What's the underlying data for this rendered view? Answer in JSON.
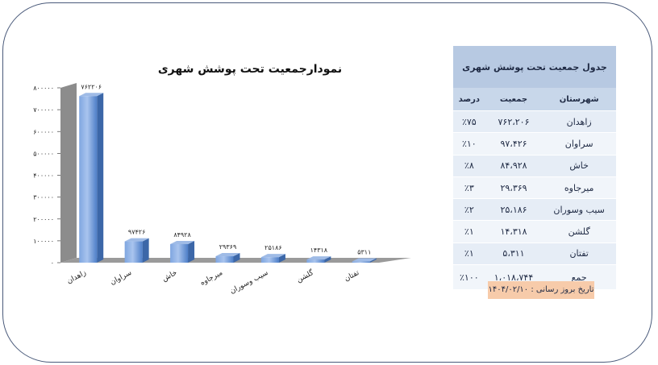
{
  "chart_data": {
    "type": "bar",
    "title": "نمودارجمعیت تحت پوشش شهری",
    "categories": [
      "زاهدان",
      "سراوان",
      "خاش",
      "میرجاوه",
      "سیب وسوران",
      "گلشن",
      "تفتان"
    ],
    "values": [
      762206,
      97426,
      84928,
      29369,
      25186,
      14318,
      5311
    ],
    "data_labels": [
      "۷۶۲۲۰۶",
      "۹۷۴۲۶",
      "۸۴۹۲۸",
      "۲۹۳۶۹",
      "۲۵۱۸۶",
      "۱۴۳۱۸",
      "۵۳۱۱"
    ],
    "ylim": [
      0,
      800000
    ],
    "yticks": [
      0,
      100000,
      200000,
      300000,
      400000,
      500000,
      600000,
      700000,
      800000
    ],
    "ytick_labels": [
      "۰",
      "۱۰۰۰۰۰",
      "۲۰۰۰۰۰",
      "۳۰۰۰۰۰",
      "۴۰۰۰۰۰",
      "۵۰۰۰۰۰",
      "۶۰۰۰۰۰",
      "۷۰۰۰۰۰",
      "۸۰۰۰۰۰"
    ],
    "grid": false,
    "bar_color": "#5b8bd4",
    "xlabel": "",
    "ylabel": ""
  },
  "table": {
    "title": "جدول جمعیت تحت پوشش شهری",
    "headers": [
      "شهرستان",
      "جمعیت",
      "درصد"
    ],
    "rows": [
      {
        "city": "زاهدان",
        "population": "۷۶۲،۲۰۶",
        "percent": "٪۷۵"
      },
      {
        "city": "سراوان",
        "population": "۹۷،۴۲۶",
        "percent": "٪۱۰"
      },
      {
        "city": "خاش",
        "population": "۸۴،۹۲۸",
        "percent": "٪۸"
      },
      {
        "city": "میرجاوه",
        "population": "۲۹،۳۶۹",
        "percent": "٪۳"
      },
      {
        "city": "سیب وسوران",
        "population": "۲۵،۱۸۶",
        "percent": "٪۲"
      },
      {
        "city": "گلشن",
        "population": "۱۴،۳۱۸",
        "percent": "٪۱"
      },
      {
        "city": "تفتان",
        "population": "۵،۳۱۱",
        "percent": "٪۱"
      }
    ],
    "total": {
      "city": "جمع",
      "population": "۱،۰۱۸،۷۴۴",
      "percent": "٪۱۰۰"
    }
  },
  "update_note": "تاریخ بروز رسانی : ۱۴۰۴/۰۲/۱۰"
}
